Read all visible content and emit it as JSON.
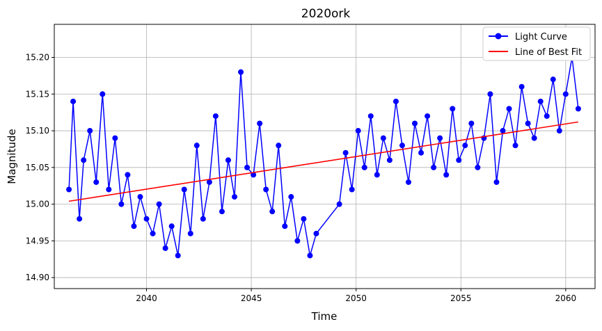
{
  "chart_data": {
    "type": "line",
    "title": "2020ork",
    "xlabel": "Time",
    "ylabel": "Magnitude",
    "y_inverted": true,
    "xlim": [
      2035.6,
      2061.4
    ],
    "ylim": [
      15.245,
      14.885
    ],
    "x_ticks": [
      2040,
      2045,
      2050,
      2055,
      2060
    ],
    "x_tick_labels": [
      "2040",
      "2045",
      "2050",
      "2055",
      "2060"
    ],
    "y_ticks": [
      14.9,
      14.95,
      15.0,
      15.05,
      15.1,
      15.15,
      15.2
    ],
    "y_tick_labels": [
      "14.90",
      "14.95",
      "15.00",
      "15.05",
      "15.10",
      "15.15",
      "15.20"
    ],
    "grid": true,
    "legend_position": "top-right",
    "series": [
      {
        "name": "Light Curve",
        "color": "#0000ff",
        "marker": "circle",
        "x": [
          2036.3,
          2036.5,
          2036.8,
          2037.0,
          2037.3,
          2037.6,
          2037.9,
          2038.2,
          2038.5,
          2038.8,
          2039.1,
          2039.4,
          2039.7,
          2040.0,
          2040.3,
          2040.6,
          2040.9,
          2041.2,
          2041.5,
          2041.8,
          2042.1,
          2042.4,
          2042.7,
          2043.0,
          2043.3,
          2043.6,
          2043.9,
          2044.2,
          2044.5,
          2044.8,
          2045.1,
          2045.4,
          2045.7,
          2046.0,
          2046.3,
          2046.6,
          2046.9,
          2047.2,
          2047.5,
          2047.8,
          2048.1,
          2049.2,
          2049.5,
          2049.8,
          2050.1,
          2050.4,
          2050.7,
          2051.0,
          2051.3,
          2051.6,
          2051.9,
          2052.2,
          2052.5,
          2052.8,
          2053.1,
          2053.4,
          2053.7,
          2054.0,
          2054.3,
          2054.6,
          2054.9,
          2055.2,
          2055.5,
          2055.8,
          2056.1,
          2056.4,
          2056.7,
          2057.0,
          2057.3,
          2057.6,
          2057.9,
          2058.2,
          2058.5,
          2058.8,
          2059.1,
          2059.4,
          2059.7,
          2060.0,
          2060.3,
          2060.6
        ],
        "y": [
          15.02,
          15.14,
          14.98,
          15.06,
          15.1,
          15.03,
          15.15,
          15.02,
          15.09,
          15.0,
          15.04,
          14.97,
          15.01,
          14.98,
          14.96,
          15.0,
          14.94,
          14.97,
          14.93,
          15.02,
          14.96,
          15.08,
          14.98,
          15.03,
          15.12,
          14.99,
          15.06,
          15.01,
          15.18,
          15.05,
          15.04,
          15.11,
          15.02,
          14.99,
          15.08,
          14.97,
          15.01,
          14.95,
          14.98,
          14.93,
          14.96,
          15.0,
          15.07,
          15.02,
          15.1,
          15.05,
          15.12,
          15.04,
          15.09,
          15.06,
          15.14,
          15.08,
          15.03,
          15.11,
          15.07,
          15.12,
          15.05,
          15.09,
          15.04,
          15.13,
          15.06,
          15.08,
          15.11,
          15.05,
          15.09,
          15.15,
          15.03,
          15.1,
          15.13,
          15.08,
          15.16,
          15.11,
          15.09,
          15.14,
          15.12,
          15.17,
          15.1,
          15.15,
          15.2,
          15.13
        ]
      },
      {
        "name": "Line of Best Fit",
        "color": "#ff0000",
        "marker": "none",
        "x": [
          2036.3,
          2060.6
        ],
        "y": [
          15.004,
          15.112
        ]
      }
    ]
  }
}
